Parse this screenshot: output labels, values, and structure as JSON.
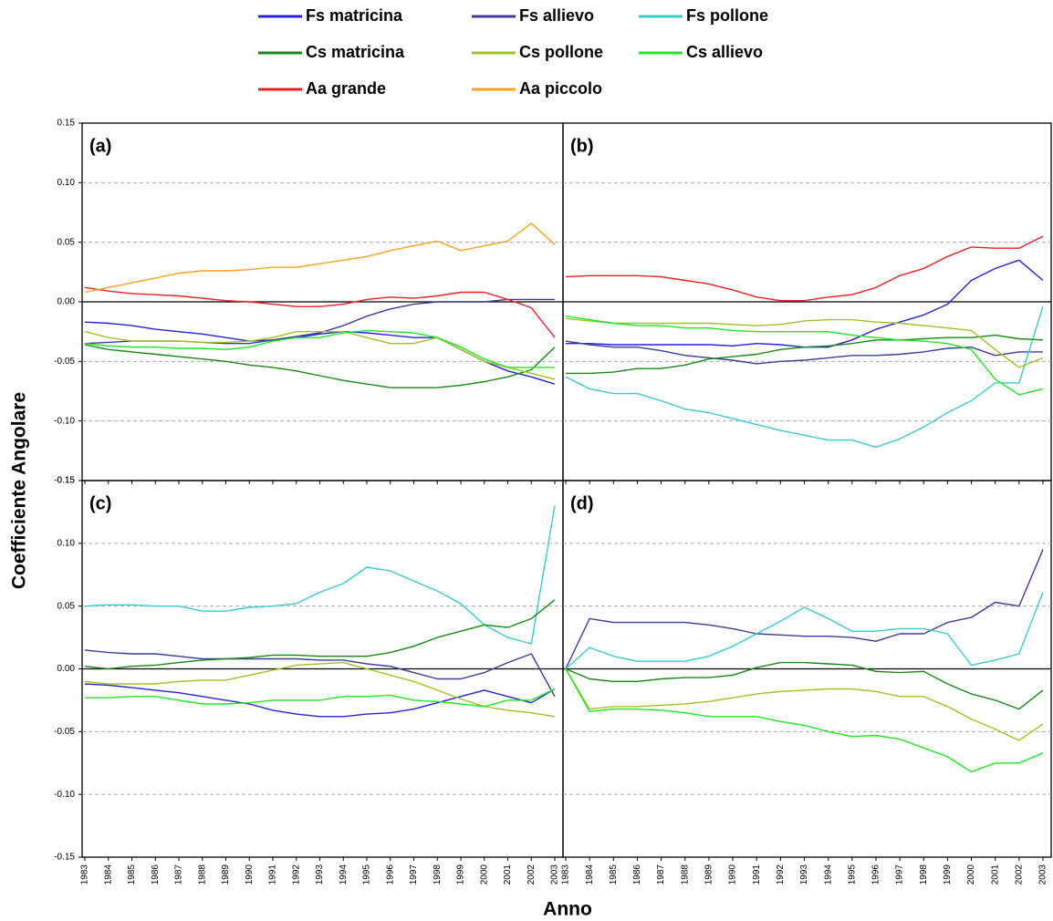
{
  "ylabel": "Coefficiente Angolare",
  "xlabel": "Anno",
  "chart_data": [
    {
      "type": "line",
      "title": "(a)",
      "grid": true,
      "x": [
        1983,
        1984,
        1985,
        1986,
        1987,
        1988,
        1989,
        1990,
        1991,
        1992,
        1993,
        1994,
        1995,
        1996,
        1997,
        1998,
        1999,
        2000,
        2001,
        2002,
        2003
      ],
      "xlim": [
        1983,
        2003
      ],
      "xticks": [
        1983,
        1984,
        1985,
        1986,
        1987,
        1988,
        1989,
        1990,
        1991,
        1992,
        1993,
        1994,
        1995,
        1996,
        1997,
        1998,
        1999,
        2000,
        2001,
        2002,
        2003
      ],
      "ylim": [
        -0.15,
        0.15
      ],
      "yticks": [
        0.15,
        {
          "value": 0.1,
          "label": "0.10"
        },
        0.05,
        {
          "value": 0,
          "label": "0.00"
        },
        -0.05,
        {
          "value": -0.1,
          "label": "-0.10"
        },
        -0.15
      ],
      "series": [
        {
          "name": "Fs matricina",
          "color": "#2424dc",
          "values": [
            -0.017,
            -0.018,
            -0.02,
            -0.023,
            -0.025,
            -0.027,
            -0.03,
            -0.033,
            -0.032,
            -0.03,
            -0.027,
            -0.025,
            -0.026,
            -0.028,
            -0.03,
            -0.03,
            -0.04,
            -0.05,
            -0.058,
            -0.063,
            -0.069
          ]
        },
        {
          "name": "Fs allievo",
          "color": "#3c3c9c",
          "values": [
            -0.035,
            -0.034,
            -0.033,
            -0.033,
            -0.033,
            -0.034,
            -0.035,
            -0.035,
            -0.032,
            -0.029,
            -0.026,
            -0.02,
            -0.012,
            -0.006,
            -0.002,
            0.0,
            0.0,
            0.0,
            0.002,
            0.002,
            0.002
          ]
        },
        {
          "name": "Cs matricina",
          "color": "#168a16",
          "values": [
            -0.036,
            -0.04,
            -0.042,
            -0.044,
            -0.046,
            -0.048,
            -0.05,
            -0.053,
            -0.055,
            -0.058,
            -0.062,
            -0.066,
            -0.069,
            -0.072,
            -0.072,
            -0.072,
            -0.07,
            -0.067,
            -0.063,
            -0.057,
            -0.038
          ]
        },
        {
          "name": "Cs pollone",
          "color": "#a2c224",
          "values": [
            -0.025,
            -0.03,
            -0.033,
            -0.033,
            -0.033,
            -0.034,
            -0.034,
            -0.033,
            -0.03,
            -0.025,
            -0.025,
            -0.025,
            -0.03,
            -0.035,
            -0.035,
            -0.03,
            -0.04,
            -0.05,
            -0.055,
            -0.06,
            -0.065
          ]
        },
        {
          "name": "Cs allievo",
          "color": "#22e822",
          "values": [
            -0.035,
            -0.037,
            -0.038,
            -0.038,
            -0.039,
            -0.039,
            -0.04,
            -0.038,
            -0.033,
            -0.03,
            -0.03,
            -0.026,
            -0.024,
            -0.025,
            -0.026,
            -0.03,
            -0.038,
            -0.048,
            -0.055,
            -0.055,
            -0.055
          ]
        },
        {
          "name": "Aa grande",
          "color": "#ec2020",
          "values": [
            0.012,
            0.009,
            0.007,
            0.006,
            0.005,
            0.003,
            0.001,
            0.0,
            -0.002,
            -0.004,
            -0.004,
            -0.002,
            0.002,
            0.004,
            0.003,
            0.005,
            0.008,
            0.008,
            0.002,
            -0.005,
            -0.03
          ]
        },
        {
          "name": "Aa piccolo",
          "color": "#ffa020",
          "values": [
            0.008,
            0.012,
            0.016,
            0.02,
            0.024,
            0.026,
            0.026,
            0.027,
            0.029,
            0.029,
            0.032,
            0.035,
            0.038,
            0.043,
            0.047,
            0.051,
            0.043,
            0.047,
            0.051,
            0.066,
            0.048
          ]
        }
      ]
    },
    {
      "type": "line",
      "title": "(b)",
      "grid": true,
      "x": [
        1983,
        1984,
        1985,
        1986,
        1987,
        1988,
        1989,
        1990,
        1991,
        1992,
        1993,
        1994,
        1995,
        1996,
        1997,
        1998,
        1999,
        2000,
        2001,
        2002,
        2003
      ],
      "xlim": [
        1983,
        2003
      ],
      "xticks": [
        1983,
        1984,
        1985,
        1986,
        1987,
        1988,
        1989,
        1990,
        1991,
        1992,
        1993,
        1994,
        1995,
        1996,
        1997,
        1998,
        1999,
        2000,
        2001,
        2002,
        2003
      ],
      "ylim": [
        -0.15,
        0.15
      ],
      "yticks": [
        0.15,
        {
          "value": 0.1,
          "label": "0.10"
        },
        0.05,
        {
          "value": 0,
          "label": "0.00"
        },
        -0.05,
        {
          "value": -0.1,
          "label": "-0.10"
        },
        -0.15
      ],
      "series": [
        {
          "name": "Fs matricina",
          "color": "#2424dc",
          "values": [
            -0.035,
            -0.035,
            -0.036,
            -0.036,
            -0.036,
            -0.036,
            -0.036,
            -0.037,
            -0.035,
            -0.036,
            -0.038,
            -0.038,
            -0.032,
            -0.023,
            -0.017,
            -0.011,
            -0.002,
            0.018,
            0.028,
            0.035,
            0.018
          ]
        },
        {
          "name": "Fs allievo",
          "color": "#3c3c9c",
          "values": [
            -0.033,
            -0.036,
            -0.038,
            -0.038,
            -0.041,
            -0.045,
            -0.047,
            -0.049,
            -0.052,
            -0.05,
            -0.049,
            -0.047,
            -0.045,
            -0.045,
            -0.044,
            -0.042,
            -0.039,
            -0.038,
            -0.045,
            -0.042,
            -0.042
          ]
        },
        {
          "name": "Fs pollone",
          "color": "#38cccc",
          "values": [
            -0.063,
            -0.073,
            -0.077,
            -0.077,
            -0.083,
            -0.09,
            -0.093,
            -0.098,
            -0.103,
            -0.108,
            -0.112,
            -0.116,
            -0.116,
            -0.122,
            -0.115,
            -0.105,
            -0.093,
            -0.083,
            -0.068,
            -0.068,
            -0.004
          ]
        },
        {
          "name": "Cs matricina",
          "color": "#168a16",
          "values": [
            -0.06,
            -0.06,
            -0.059,
            -0.056,
            -0.056,
            -0.053,
            -0.048,
            -0.046,
            -0.044,
            -0.04,
            -0.038,
            -0.037,
            -0.035,
            -0.032,
            -0.032,
            -0.031,
            -0.03,
            -0.03,
            -0.028,
            -0.031,
            -0.032
          ]
        },
        {
          "name": "Cs pollone",
          "color": "#a2c224",
          "values": [
            -0.014,
            -0.016,
            -0.018,
            -0.018,
            -0.018,
            -0.018,
            -0.018,
            -0.019,
            -0.02,
            -0.019,
            -0.016,
            -0.015,
            -0.015,
            -0.017,
            -0.018,
            -0.02,
            -0.022,
            -0.024,
            -0.04,
            -0.055,
            -0.047
          ]
        },
        {
          "name": "Cs allievo",
          "color": "#22e822",
          "values": [
            -0.012,
            -0.015,
            -0.018,
            -0.02,
            -0.02,
            -0.022,
            -0.022,
            -0.024,
            -0.025,
            -0.025,
            -0.025,
            -0.025,
            -0.028,
            -0.03,
            -0.032,
            -0.033,
            -0.035,
            -0.04,
            -0.065,
            -0.078,
            -0.073
          ]
        },
        {
          "name": "Aa grande",
          "color": "#ec2020",
          "values": [
            0.021,
            0.022,
            0.022,
            0.022,
            0.021,
            0.018,
            0.015,
            0.01,
            0.004,
            0.001,
            0.001,
            0.004,
            0.006,
            0.012,
            0.022,
            0.028,
            0.038,
            0.046,
            0.045,
            0.045,
            0.055
          ]
        }
      ]
    },
    {
      "type": "line",
      "title": "(c)",
      "grid": true,
      "x": [
        1983,
        1984,
        1985,
        1986,
        1987,
        1988,
        1989,
        1990,
        1991,
        1992,
        1993,
        1994,
        1995,
        1996,
        1997,
        1998,
        1999,
        2000,
        2001,
        2002,
        2003
      ],
      "xlim": [
        1983,
        2003
      ],
      "xticks": [
        1983,
        1984,
        1985,
        1986,
        1987,
        1988,
        1989,
        1990,
        1991,
        1992,
        1993,
        1994,
        1995,
        1996,
        1997,
        1998,
        1999,
        2000,
        2001,
        2002,
        2003
      ],
      "ylim": [
        -0.15,
        0.15
      ],
      "yticks": [
        0.15,
        {
          "value": 0.1,
          "label": "0.10"
        },
        0.05,
        {
          "value": 0,
          "label": "0.00"
        },
        -0.05,
        {
          "value": -0.1,
          "label": "-0.10"
        },
        -0.15
      ],
      "series": [
        {
          "name": "Fs matricina",
          "color": "#2424dc",
          "values": [
            -0.012,
            -0.013,
            -0.015,
            -0.017,
            -0.019,
            -0.022,
            -0.025,
            -0.028,
            -0.033,
            -0.036,
            -0.038,
            -0.038,
            -0.036,
            -0.035,
            -0.032,
            -0.027,
            -0.022,
            -0.017,
            -0.022,
            -0.027,
            -0.016
          ]
        },
        {
          "name": "Fs allievo",
          "color": "#3c3c9c",
          "values": [
            0.015,
            0.013,
            0.012,
            0.012,
            0.01,
            0.008,
            0.008,
            0.008,
            0.008,
            0.008,
            0.007,
            0.007,
            0.004,
            0.002,
            -0.003,
            -0.008,
            -0.008,
            -0.003,
            0.005,
            0.012,
            -0.022
          ]
        },
        {
          "name": "Fs pollone",
          "color": "#38cccc",
          "values": [
            0.05,
            0.051,
            0.051,
            0.05,
            0.05,
            0.046,
            0.046,
            0.049,
            0.05,
            0.052,
            0.061,
            0.068,
            0.081,
            0.078,
            0.07,
            0.062,
            0.052,
            0.035,
            0.025,
            0.02,
            0.13
          ]
        },
        {
          "name": "Cs matricina",
          "color": "#168a16",
          "values": [
            0.002,
            0.0,
            0.002,
            0.003,
            0.005,
            0.007,
            0.008,
            0.009,
            0.011,
            0.011,
            0.01,
            0.01,
            0.01,
            0.013,
            0.018,
            0.025,
            0.03,
            0.035,
            0.033,
            0.04,
            0.055
          ]
        },
        {
          "name": "Cs pollone",
          "color": "#a2c224",
          "values": [
            -0.01,
            -0.012,
            -0.012,
            -0.012,
            -0.01,
            -0.009,
            -0.009,
            -0.005,
            -0.001,
            0.003,
            0.004,
            0.005,
            0.0,
            -0.005,
            -0.01,
            -0.017,
            -0.024,
            -0.03,
            -0.033,
            -0.035,
            -0.038
          ]
        },
        {
          "name": "Cs allievo",
          "color": "#22e822",
          "values": [
            -0.023,
            -0.023,
            -0.022,
            -0.022,
            -0.025,
            -0.028,
            -0.028,
            -0.027,
            -0.025,
            -0.025,
            -0.025,
            -0.022,
            -0.022,
            -0.021,
            -0.025,
            -0.026,
            -0.028,
            -0.03,
            -0.025,
            -0.025,
            -0.016
          ]
        }
      ]
    },
    {
      "type": "line",
      "title": "(d)",
      "grid": true,
      "x": [
        1983,
        1984,
        1985,
        1986,
        1987,
        1988,
        1989,
        1990,
        1991,
        1992,
        1993,
        1994,
        1995,
        1996,
        1997,
        1998,
        1999,
        2000,
        2001,
        2002,
        2003
      ],
      "xlim": [
        1983,
        2003
      ],
      "xticks": [
        1983,
        1984,
        1985,
        1986,
        1987,
        1988,
        1989,
        1990,
        1991,
        1992,
        1993,
        1994,
        1995,
        1996,
        1997,
        1998,
        1999,
        2000,
        2001,
        2002,
        2003
      ],
      "ylim": [
        -0.15,
        0.15
      ],
      "yticks": [
        0.15,
        {
          "value": 0.1,
          "label": "0.10"
        },
        0.05,
        {
          "value": 0,
          "label": "0.00"
        },
        -0.05,
        {
          "value": -0.1,
          "label": "-0.10"
        },
        -0.15
      ],
      "series": [
        {
          "name": "Fs allievo",
          "color": "#3c3c9c",
          "values": [
            0.0,
            0.04,
            0.037,
            0.037,
            0.037,
            0.037,
            0.035,
            0.032,
            0.028,
            0.027,
            0.026,
            0.026,
            0.025,
            0.022,
            0.028,
            0.028,
            0.037,
            0.041,
            0.053,
            0.05,
            0.095
          ]
        },
        {
          "name": "Fs pollone",
          "color": "#38cccc",
          "values": [
            0.0,
            0.017,
            0.01,
            0.006,
            0.006,
            0.006,
            0.01,
            0.018,
            0.028,
            0.038,
            0.049,
            0.04,
            0.03,
            0.03,
            0.032,
            0.032,
            0.028,
            0.003,
            0.007,
            0.012,
            0.061
          ]
        },
        {
          "name": "Cs matricina",
          "color": "#168a16",
          "values": [
            0.0,
            -0.008,
            -0.01,
            -0.01,
            -0.008,
            -0.007,
            -0.007,
            -0.005,
            0.001,
            0.005,
            0.005,
            0.004,
            0.003,
            -0.002,
            -0.003,
            -0.002,
            -0.012,
            -0.02,
            -0.025,
            -0.032,
            -0.017
          ]
        },
        {
          "name": "Cs pollone",
          "color": "#a2c224",
          "values": [
            0.0,
            -0.032,
            -0.03,
            -0.03,
            -0.029,
            -0.028,
            -0.026,
            -0.023,
            -0.02,
            -0.018,
            -0.017,
            -0.016,
            -0.016,
            -0.018,
            -0.022,
            -0.022,
            -0.03,
            -0.04,
            -0.048,
            -0.057,
            -0.044
          ]
        },
        {
          "name": "Cs allievo",
          "color": "#22e822",
          "values": [
            0.0,
            -0.034,
            -0.032,
            -0.032,
            -0.033,
            -0.035,
            -0.038,
            -0.038,
            -0.038,
            -0.042,
            -0.045,
            -0.05,
            -0.054,
            -0.053,
            -0.056,
            -0.063,
            -0.07,
            -0.082,
            -0.075,
            -0.075,
            -0.067
          ]
        }
      ]
    }
  ]
}
